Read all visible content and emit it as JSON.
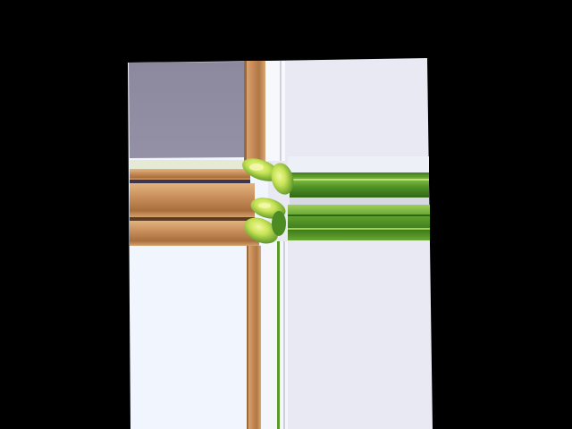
{
  "scene": {
    "background": "#000000",
    "subject": "abstract-render",
    "colors": {
      "panel_top_left": "#8e8aa0",
      "panel_light": "#eef2fb",
      "panel_right": "#e6e7f1",
      "wood": "#c98f5c",
      "wood_dark": "#9a6a3e",
      "green": "#5a9a2c",
      "green_light": "#a7d35a",
      "leaf_yellow": "#d8ec5a"
    }
  }
}
